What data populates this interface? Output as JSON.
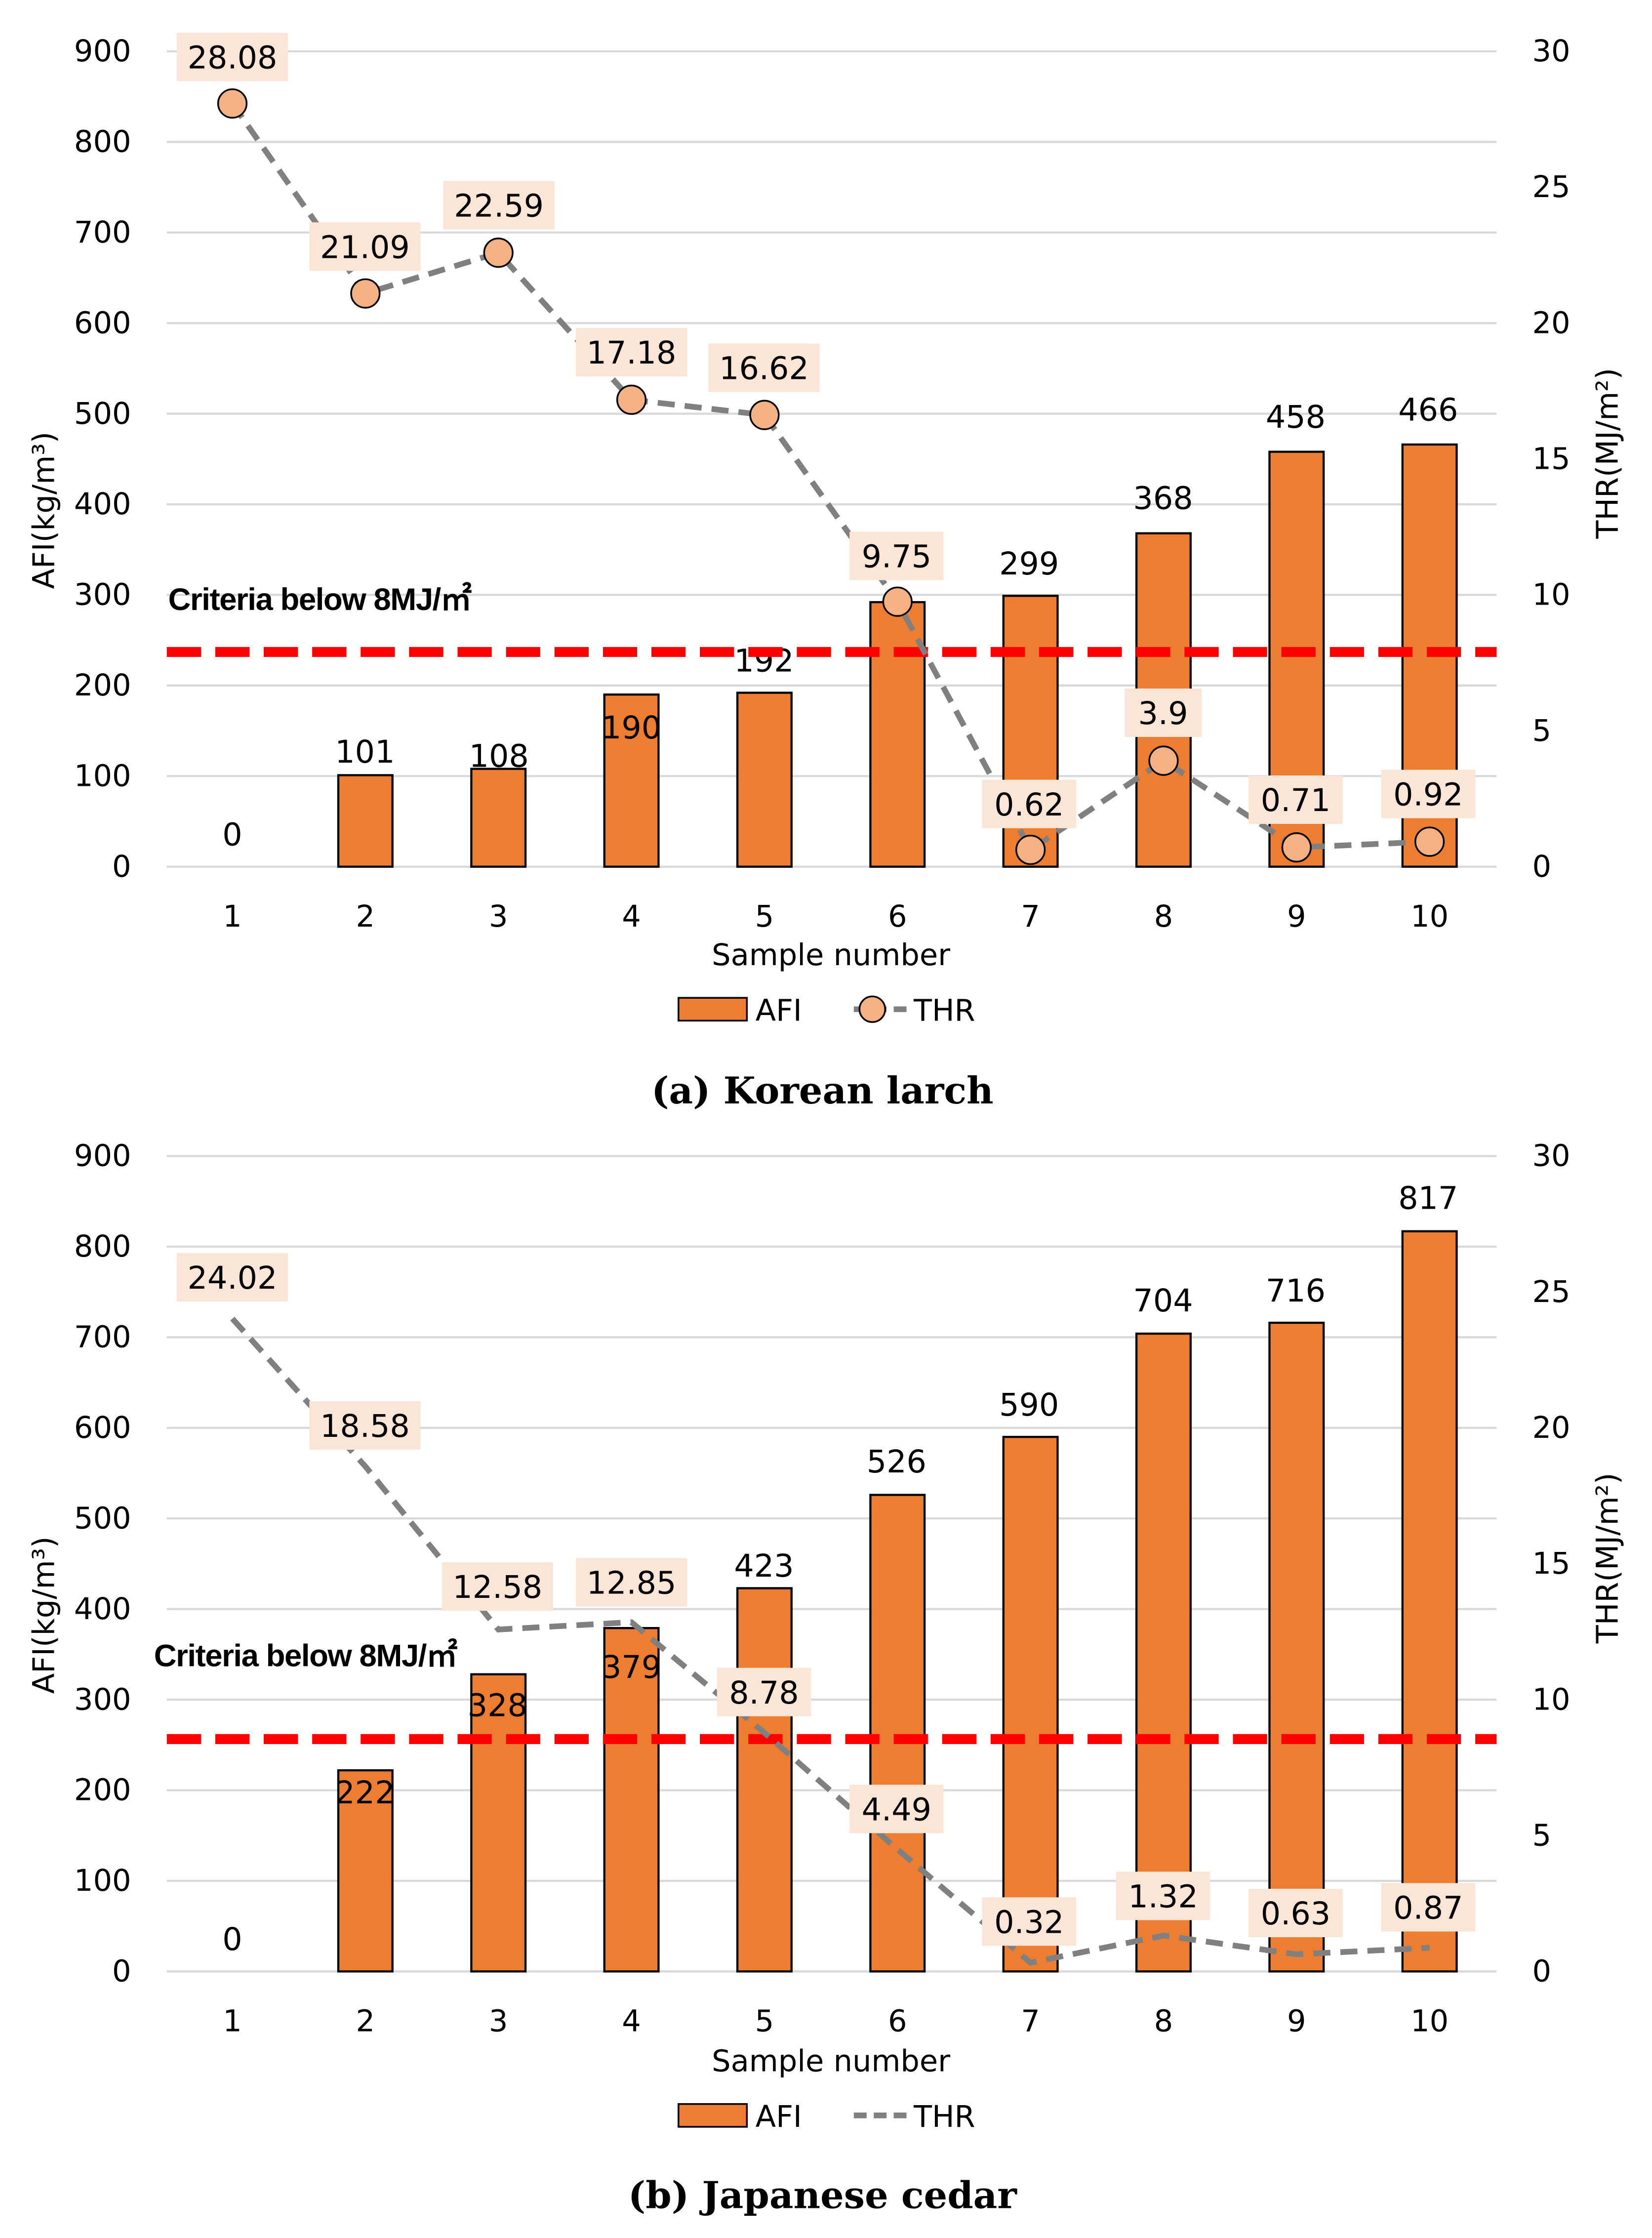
{
  "chart_data": [
    {
      "type": "bar",
      "caption": "(a) Korean larch",
      "categories": [
        "1",
        "2",
        "3",
        "4",
        "5",
        "6",
        "7",
        "8",
        "9",
        "10"
      ],
      "xlabel": "Sample number",
      "ylabel": "AFI(kg/m³)",
      "y2label": "THR(MJ/m²)",
      "ylim": [
        0,
        900
      ],
      "yticks": [
        0,
        100,
        200,
        300,
        400,
        500,
        600,
        700,
        800,
        900
      ],
      "y2lim": [
        0,
        30
      ],
      "y2ticks": [
        0,
        5,
        10,
        15,
        20,
        25,
        30
      ],
      "grid": true,
      "legend": "bottom",
      "series": [
        {
          "name": "AFI",
          "kind": "bar",
          "axis": "left",
          "color": "#ed7d31",
          "values": [
            0,
            101,
            108,
            190,
            192,
            292,
            299,
            368,
            458,
            466
          ],
          "labels": [
            "0",
            "101",
            "108",
            "190",
            "192",
            "",
            "299",
            "368",
            "458",
            "466"
          ]
        },
        {
          "name": "THR",
          "kind": "line",
          "axis": "right",
          "color": "#808080",
          "marker_color": "#f4b183",
          "markers": true,
          "values": [
            28.08,
            21.09,
            22.59,
            17.18,
            16.62,
            9.75,
            0.62,
            3.9,
            0.71,
            0.92
          ],
          "labels": [
            "28.08",
            "21.09",
            "22.59",
            "17.18",
            "16.62",
            "9.75",
            "0.62",
            "3.9",
            "0.71",
            "0.92"
          ]
        }
      ],
      "criteria": {
        "text": "Criteria below 8MJ/㎡",
        "thr_value": 7.9,
        "color": "#ff0000"
      }
    },
    {
      "type": "bar",
      "caption": "(b) Japanese cedar",
      "categories": [
        "1",
        "2",
        "3",
        "4",
        "5",
        "6",
        "7",
        "8",
        "9",
        "10"
      ],
      "xlabel": "Sample number",
      "ylabel": "AFI(kg/m³)",
      "y2label": "THR(MJ/m²)",
      "ylim": [
        0,
        900
      ],
      "yticks": [
        0,
        100,
        200,
        300,
        400,
        500,
        600,
        700,
        800,
        900
      ],
      "y2lim": [
        0,
        30
      ],
      "y2ticks": [
        0,
        5,
        10,
        15,
        20,
        25,
        30
      ],
      "grid": true,
      "legend": "bottom",
      "series": [
        {
          "name": "AFI",
          "kind": "bar",
          "axis": "left",
          "color": "#ed7d31",
          "values": [
            0,
            222,
            328,
            379,
            423,
            526,
            590,
            704,
            716,
            817
          ],
          "labels": [
            "0",
            "222",
            "328",
            "379",
            "423",
            "526",
            "590",
            "704",
            "716",
            "817"
          ]
        },
        {
          "name": "THR",
          "kind": "line",
          "axis": "right",
          "color": "#808080",
          "markers": false,
          "values": [
            24.02,
            18.58,
            12.58,
            12.85,
            8.78,
            4.49,
            0.32,
            1.32,
            0.63,
            0.87
          ],
          "labels": [
            "24.02",
            "18.58",
            "12.58",
            "12.85",
            "8.78",
            "4.49",
            "0.32",
            "1.32",
            "0.63",
            "0.87"
          ]
        }
      ],
      "criteria": {
        "text": "Criteria below 8MJ/㎡",
        "thr_value": 8.55,
        "color": "#ff0000"
      }
    }
  ]
}
